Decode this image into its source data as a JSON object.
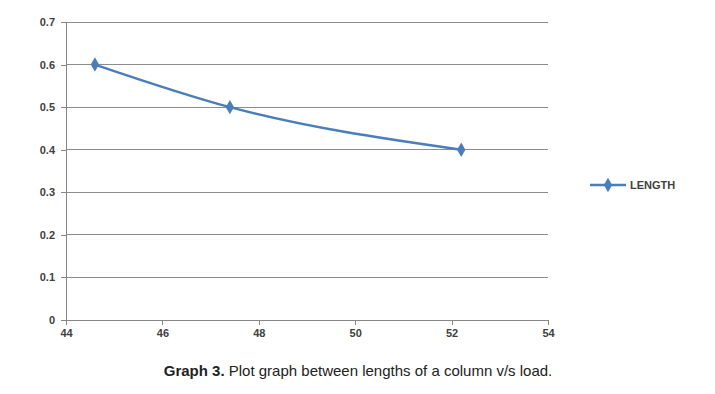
{
  "chart_data": {
    "type": "line",
    "title": "Graph 3. Plot graph between lengths of a column v/s load.",
    "x": [
      44.6,
      47.4,
      52.2
    ],
    "series": [
      {
        "name": "LENGTH",
        "color": "#4a7ebb",
        "values": [
          0.6,
          0.5,
          0.4
        ],
        "marker": "diamond",
        "line_style": "solid"
      }
    ],
    "xlim": [
      44,
      54
    ],
    "xticks": [
      44,
      46,
      48,
      50,
      52,
      54
    ],
    "ylim": [
      0,
      0.7
    ],
    "yticks": [
      0,
      0.1,
      0.2,
      0.3,
      0.4,
      0.5,
      0.6,
      0.7
    ],
    "grid": true,
    "legend": "right"
  }
}
